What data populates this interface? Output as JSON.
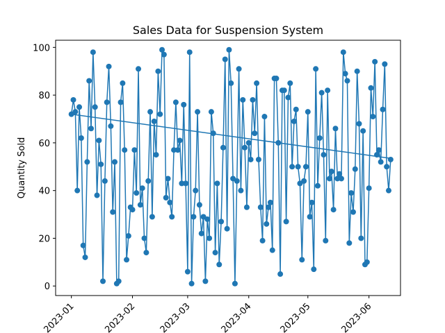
{
  "chart_data": {
    "type": "line",
    "title": "Sales Data for Suspension System",
    "xlabel": "",
    "ylabel": "Quantity Sold",
    "x_start_date": "2023-01-01",
    "x_ticks": [
      "2023-01",
      "2023-02",
      "2023-03",
      "2023-04",
      "2023-05",
      "2023-06"
    ],
    "y_ticks": [
      0,
      20,
      40,
      60,
      80,
      100
    ],
    "xlim": [
      "2022-12-24",
      "2023-06-17"
    ],
    "ylim": [
      -4,
      103
    ],
    "grid": false,
    "series": [
      {
        "kind": "line-with-markers",
        "color": "#1f77b4",
        "values": [
          72,
          78,
          73,
          40,
          75,
          62,
          17,
          12,
          52,
          86,
          66,
          98,
          75,
          38,
          61,
          51,
          2,
          44,
          77,
          92,
          67,
          31,
          52,
          1,
          2,
          77,
          85,
          57,
          11,
          21,
          33,
          32,
          57,
          39,
          91,
          34,
          41,
          20,
          14,
          44,
          73,
          29,
          69,
          55,
          90,
          72,
          99,
          97,
          37,
          45,
          35,
          29,
          57,
          77,
          57,
          61,
          43,
          76,
          43,
          6,
          98,
          1,
          29,
          40,
          73,
          34,
          22,
          29,
          2,
          28,
          20,
          73,
          64,
          14,
          43,
          9,
          27,
          58,
          95,
          24,
          99,
          85,
          45,
          1,
          44,
          91,
          40,
          78,
          58,
          33,
          60,
          53,
          78,
          64,
          85,
          53,
          33,
          19,
          71,
          26,
          33,
          35,
          15,
          87,
          87,
          60,
          5,
          82,
          82,
          27,
          79,
          85,
          50,
          69,
          74,
          50,
          43,
          11,
          44,
          50,
          73,
          29,
          35,
          7,
          91,
          42,
          62,
          81,
          55,
          19,
          82,
          45,
          48,
          32,
          66,
          45,
          47,
          45,
          98,
          89,
          86,
          18,
          39,
          31,
          49,
          90,
          68,
          20,
          65,
          9,
          10,
          41,
          83,
          71,
          94,
          55,
          57,
          52,
          74,
          93,
          50,
          40,
          53
        ]
      },
      {
        "kind": "trend-line",
        "color": "#1f77b4",
        "start": 72,
        "end": 53.5
      }
    ]
  }
}
